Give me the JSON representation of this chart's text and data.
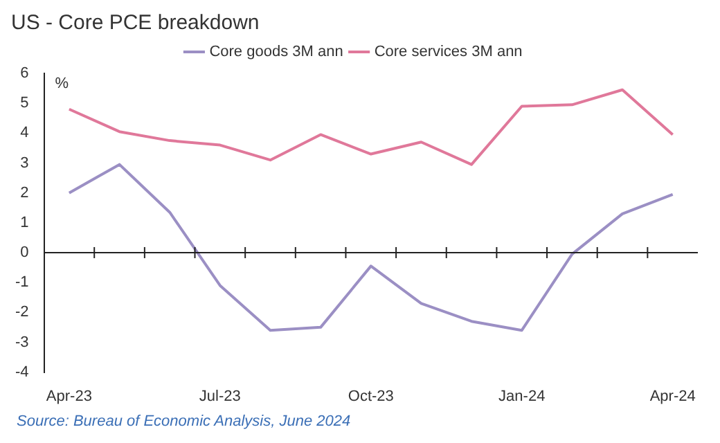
{
  "chart_data": {
    "type": "line",
    "title": "US - Core PCE breakdown",
    "ylabel": "%",
    "categories": [
      "Apr-23",
      null,
      null,
      "Jul-23",
      null,
      null,
      "Oct-23",
      null,
      null,
      "Jan-24",
      null,
      null,
      "Apr-24"
    ],
    "series": [
      {
        "name": "Core goods 3M ann",
        "color": "#9b8fc4",
        "values": [
          2.0,
          2.95,
          1.35,
          -1.1,
          -2.6,
          -2.5,
          -0.45,
          -1.7,
          -2.3,
          -2.6,
          -0.05,
          1.3,
          1.95
        ]
      },
      {
        "name": "Core services 3M ann",
        "color": "#e0789a",
        "values": [
          4.8,
          4.05,
          3.75,
          3.6,
          3.1,
          3.95,
          3.3,
          3.7,
          2.95,
          4.9,
          4.95,
          5.45,
          3.95
        ]
      }
    ],
    "ylim": [
      -4,
      6
    ],
    "yticks": [
      -4,
      -3,
      -2,
      -1,
      0,
      1,
      2,
      3,
      4,
      5,
      6
    ],
    "legend": "top",
    "marker": "none",
    "line_style": "solid",
    "annotations": [
      "Source: Bureau of Economic Analysis, June 2024"
    ]
  }
}
